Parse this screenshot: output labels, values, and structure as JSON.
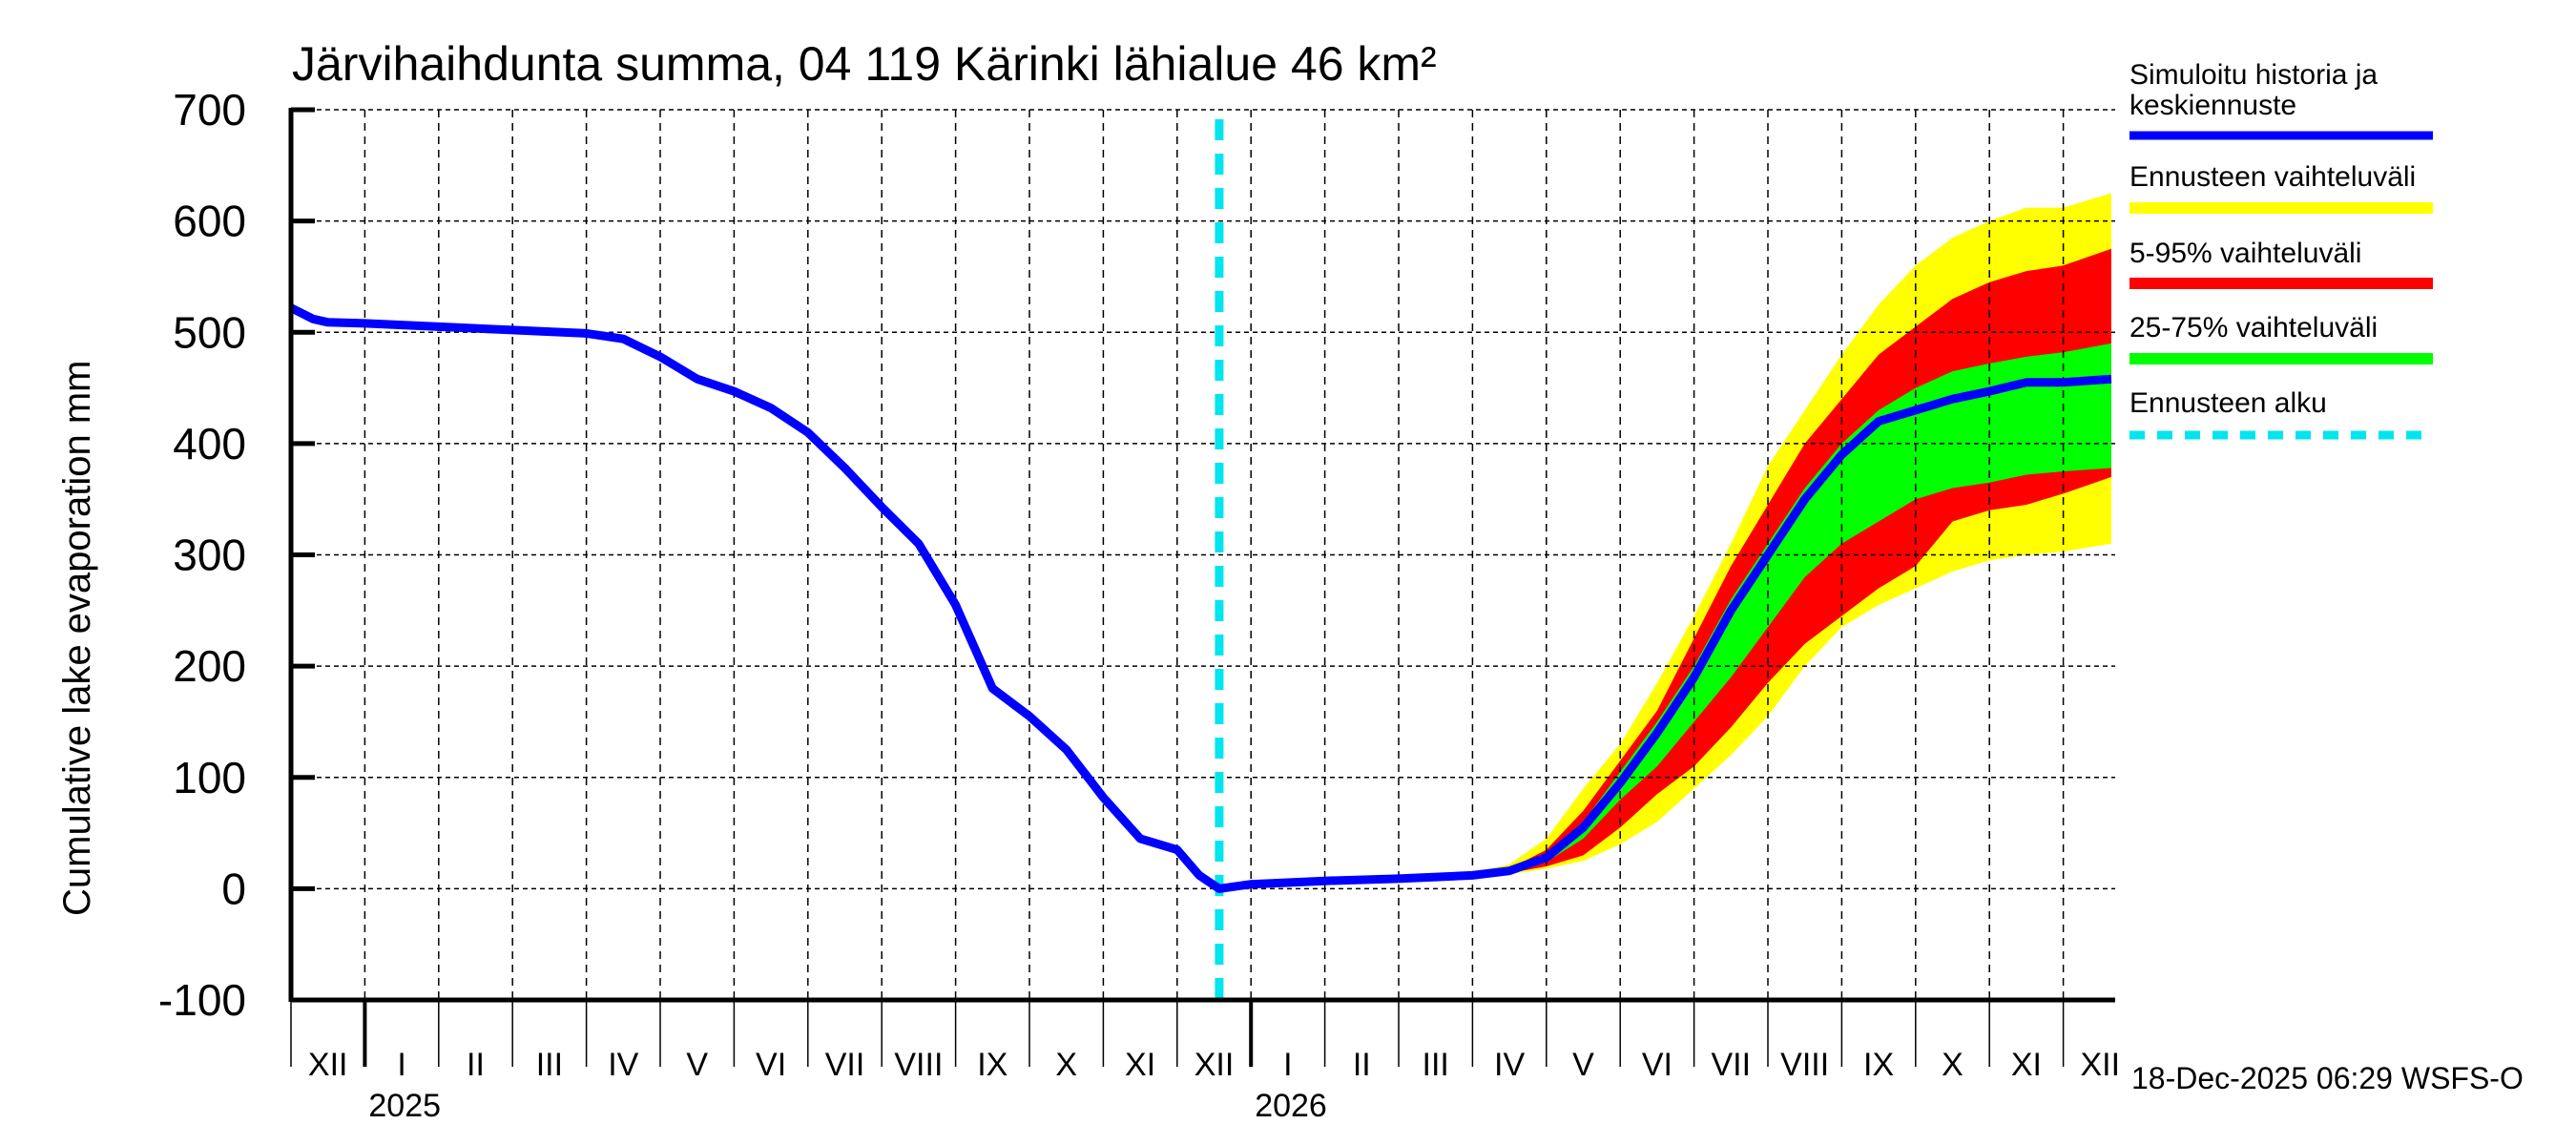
{
  "chart_data": {
    "type": "area",
    "title": "Järvihaihdunta summa, 04 119 Kärinki lähialue 46 km²",
    "ylabel": "Cumulative lake evaporation   mm",
    "xlabel": "",
    "ylim": [
      -100,
      700
    ],
    "yticks": [
      "700",
      "600",
      "500",
      "400",
      "300",
      "200",
      "100",
      "0",
      "-100"
    ],
    "ytick_values": [
      700,
      600,
      500,
      400,
      300,
      200,
      100,
      0,
      -100
    ],
    "x_unit": "months since 2024-12-01",
    "xlim": [
      0,
      24.65
    ],
    "month_labels": [
      "XII",
      "I",
      "II",
      "III",
      "IV",
      "V",
      "VI",
      "VII",
      "VIII",
      "IX",
      "X",
      "XI",
      "XII",
      "I",
      "II",
      "III",
      "IV",
      "V",
      "VI",
      "VII",
      "VIII",
      "IX",
      "X",
      "XI",
      "XII"
    ],
    "year_labels": [
      {
        "label": "2025",
        "x": 1
      },
      {
        "label": "2026",
        "x": 13
      }
    ],
    "grid": true,
    "forecast_start": 12.57,
    "legend_position": "right",
    "legend": [
      {
        "label": "Simuloitu historia ja keskiennuste",
        "color": "#0000ff",
        "style": "line"
      },
      {
        "label": "Ennusteen vaihteluväli",
        "color": "#ffff00",
        "style": "band"
      },
      {
        "label": "5-95% vaihteluväli",
        "color": "#ff0000",
        "style": "band"
      },
      {
        "label": "25-75% vaihteluväli",
        "color": "#00ff00",
        "style": "band"
      },
      {
        "label": "Ennusteen alku",
        "color": "#00e5ee",
        "style": "dashed"
      }
    ],
    "series": [
      {
        "name": "Simuloitu historia ja keskiennuste",
        "color": "#0000ff",
        "x": [
          0,
          0.3,
          0.5,
          1,
          2,
          3,
          4,
          4.5,
          5,
          5.5,
          6,
          6.5,
          7,
          7.5,
          8,
          8.5,
          9,
          9.5,
          10,
          10.5,
          11,
          11.5,
          12,
          12.3,
          12.57,
          13,
          14,
          15,
          16,
          16.5,
          17,
          17.5,
          18,
          18.5,
          19,
          19.5,
          20,
          20.5,
          21,
          21.5,
          22,
          22.5,
          23,
          23.5,
          24,
          24.65
        ],
        "y": [
          522,
          512,
          509,
          508,
          505,
          502,
          499,
          494,
          478,
          458,
          447,
          432,
          410,
          378,
          343,
          310,
          255,
          180,
          155,
          125,
          82,
          45,
          35,
          12,
          0,
          4,
          7,
          9,
          12,
          16,
          28,
          55,
          95,
          140,
          190,
          250,
          300,
          350,
          390,
          420,
          430,
          440,
          447,
          455,
          455,
          458
        ]
      },
      {
        "name": "Ennusteen vaihteluväli",
        "color": "#ffff00",
        "x": [
          12.57,
          13,
          14,
          15,
          16,
          16.5,
          17,
          17.5,
          18,
          18.5,
          19,
          19.5,
          20,
          20.5,
          21,
          21.5,
          22,
          22.5,
          23,
          23.5,
          24,
          24.65
        ],
        "upper": [
          0,
          5,
          8,
          10,
          14,
          22,
          45,
          90,
          130,
          185,
          245,
          310,
          380,
          430,
          480,
          525,
          560,
          585,
          600,
          612,
          612,
          625
        ],
        "lower": [
          0,
          3,
          6,
          8,
          10,
          13,
          18,
          25,
          40,
          60,
          90,
          120,
          155,
          200,
          235,
          255,
          270,
          285,
          295,
          300,
          303,
          310
        ]
      },
      {
        "name": "5-95% vaihteluväli",
        "color": "#ff0000",
        "x": [
          12.57,
          13,
          14,
          15,
          16,
          16.5,
          17,
          17.5,
          18,
          18.5,
          19,
          19.5,
          20,
          20.5,
          21,
          21.5,
          22,
          22.5,
          23,
          23.5,
          24,
          24.65
        ],
        "upper": [
          0,
          4,
          7,
          9,
          12,
          18,
          35,
          70,
          115,
          160,
          225,
          290,
          345,
          400,
          440,
          480,
          505,
          530,
          545,
          555,
          560,
          575
        ],
        "lower": [
          0,
          3,
          6,
          8,
          11,
          14,
          20,
          30,
          55,
          85,
          110,
          145,
          185,
          220,
          245,
          270,
          290,
          330,
          340,
          345,
          355,
          370
        ]
      },
      {
        "name": "25-75% vaihteluväli",
        "color": "#00ff00",
        "x": [
          12.57,
          13,
          14,
          15,
          16,
          16.5,
          17,
          17.5,
          18,
          18.5,
          19,
          19.5,
          20,
          20.5,
          21,
          21.5,
          22,
          22.5,
          23,
          23.5,
          24,
          24.65
        ],
        "upper": [
          0,
          4,
          7,
          9,
          12,
          16,
          30,
          60,
          105,
          150,
          200,
          260,
          310,
          360,
          400,
          430,
          450,
          465,
          472,
          478,
          482,
          490
        ],
        "lower": [
          0,
          4,
          7,
          9,
          12,
          15,
          24,
          45,
          80,
          110,
          150,
          190,
          235,
          280,
          310,
          330,
          350,
          360,
          365,
          372,
          375,
          378
        ]
      }
    ]
  }
}
